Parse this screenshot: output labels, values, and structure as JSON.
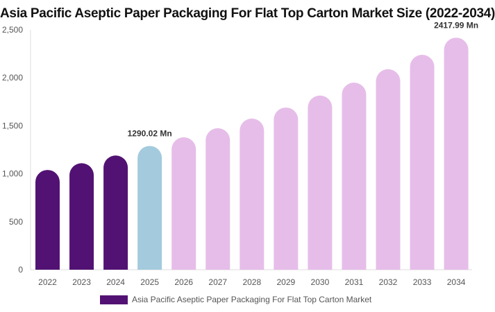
{
  "chart_data": {
    "type": "bar",
    "title": "Asia Pacific Aseptic Paper Packaging For Flat Top Carton Market Size (2022-2034)",
    "categories": [
      "2022",
      "2023",
      "2024",
      "2025",
      "2026",
      "2027",
      "2028",
      "2029",
      "2030",
      "2031",
      "2032",
      "2033",
      "2034"
    ],
    "series": [
      {
        "name": "Asia Pacific Aseptic Paper Packaging For Flat Top Carton Market",
        "values": [
          1040,
          1110,
          1190,
          1290.02,
          1380,
          1475,
          1575,
          1690,
          1815,
          1950,
          2090,
          2240,
          2417.99
        ]
      }
    ],
    "data_labels": [
      {
        "category": "2025",
        "text": "1290.02 Mn"
      },
      {
        "category": "2034",
        "text": "2417.99 Mn"
      }
    ],
    "y_ticks": [
      "0",
      "500",
      "1,000",
      "1,500",
      "2,000",
      "2,500"
    ],
    "ylim": [
      0,
      2500
    ],
    "xlabel": "",
    "ylabel": "",
    "grid": false,
    "legend_position": "bottom",
    "colors": {
      "historical": "#521273",
      "current": "#a3cbdd",
      "forecast": "#e6bde9",
      "axis": "#dddddd",
      "tick_text": "#555555",
      "label_text": "#333333"
    }
  }
}
